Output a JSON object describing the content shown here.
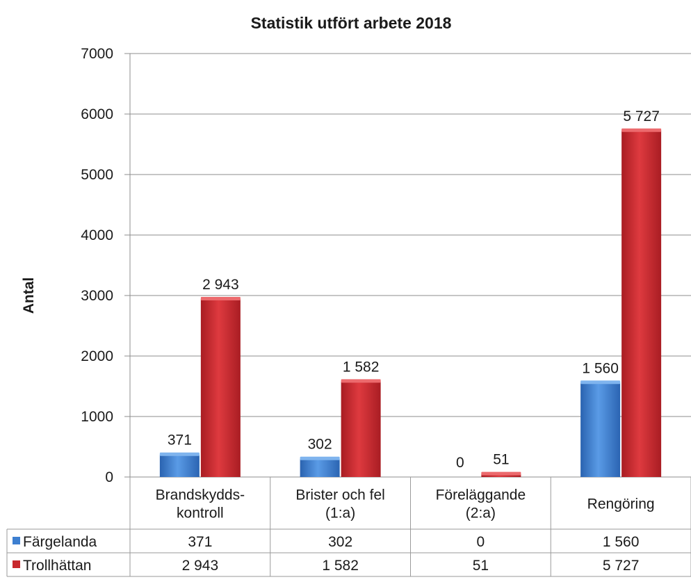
{
  "chart_data": {
    "type": "bar",
    "title": "Statistik utfört arbete 2018",
    "ylabel": "Antal",
    "xlabel": "",
    "ylim": [
      0,
      7000
    ],
    "yticks": [
      "0",
      "1000",
      "2000",
      "3000",
      "4000",
      "5000",
      "6000",
      "7000"
    ],
    "categories": [
      [
        "Brandskydds-",
        "kontroll"
      ],
      [
        "Brister och fel",
        "(1:a)"
      ],
      [
        "Föreläggande",
        "(2:a)"
      ],
      [
        "Rengöring"
      ]
    ],
    "series": [
      {
        "name": "Färgelanda",
        "color": "#3d7fd0",
        "values": [
          371,
          302,
          0,
          1560
        ],
        "labels": [
          "371",
          "302",
          "0",
          "1 560"
        ]
      },
      {
        "name": "Trollhättan",
        "color": "#c8282d",
        "values": [
          2943,
          1582,
          51,
          5727
        ],
        "labels": [
          "2 943",
          "1 582",
          "51",
          "5 727"
        ]
      }
    ],
    "grid": true,
    "legend": "data-table"
  }
}
